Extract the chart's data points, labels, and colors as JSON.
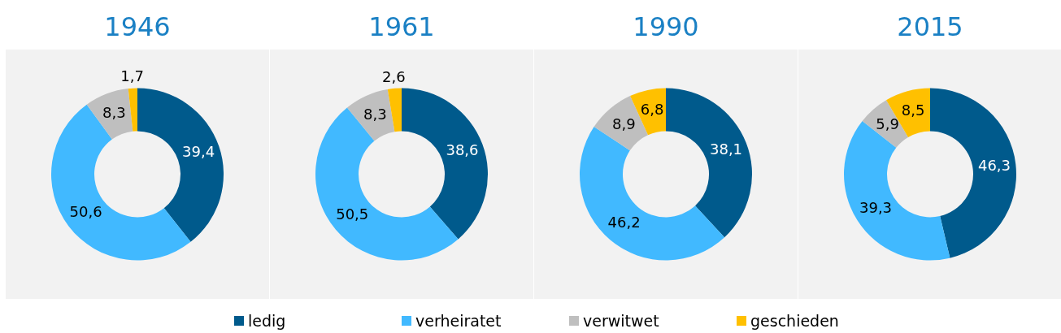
{
  "chart_data": [
    {
      "type": "donut",
      "title": "1946",
      "categories": [
        "ledig",
        "verheiratet",
        "verwitwet",
        "geschieden"
      ],
      "values": [
        39.4,
        50.6,
        8.3,
        1.7
      ],
      "value_labels": [
        "39,4",
        "50,6",
        "8,3",
        "1,7"
      ],
      "colors": [
        "#005a8c",
        "#41b9ff",
        "#bfbfbf",
        "#ffc000"
      ],
      "legend": "bottom"
    },
    {
      "type": "donut",
      "title": "1961",
      "categories": [
        null,
        null,
        null,
        null
      ],
      "values": [
        38.6,
        50.5,
        8.3,
        2.6
      ],
      "value_labels": [
        "38,6",
        "50,5",
        "8,3",
        "2,6"
      ],
      "colors": [
        "#005a8c",
        "#41b9ff",
        "#bfbfbf",
        "#ffc000"
      ]
    },
    {
      "type": "donut",
      "title": "1990",
      "categories": [
        null,
        null,
        null,
        null
      ],
      "values": [
        38.1,
        46.2,
        8.9,
        6.8
      ],
      "value_labels": [
        "38,1",
        "46,2",
        "8,9",
        "6,8"
      ],
      "colors": [
        "#005a8c",
        "#41b9ff",
        "#bfbfbf",
        "#ffc000"
      ]
    },
    {
      "type": "donut",
      "title": "2015",
      "categories": [
        null,
        null,
        null,
        null
      ],
      "values": [
        46.3,
        39.3,
        5.9,
        8.5
      ],
      "value_labels": [
        "46,3",
        "39,3",
        "5,9",
        "8,5"
      ],
      "colors": [
        "#005a8c",
        "#41b9ff",
        "#bfbfbf",
        "#ffc000"
      ]
    }
  ]
}
